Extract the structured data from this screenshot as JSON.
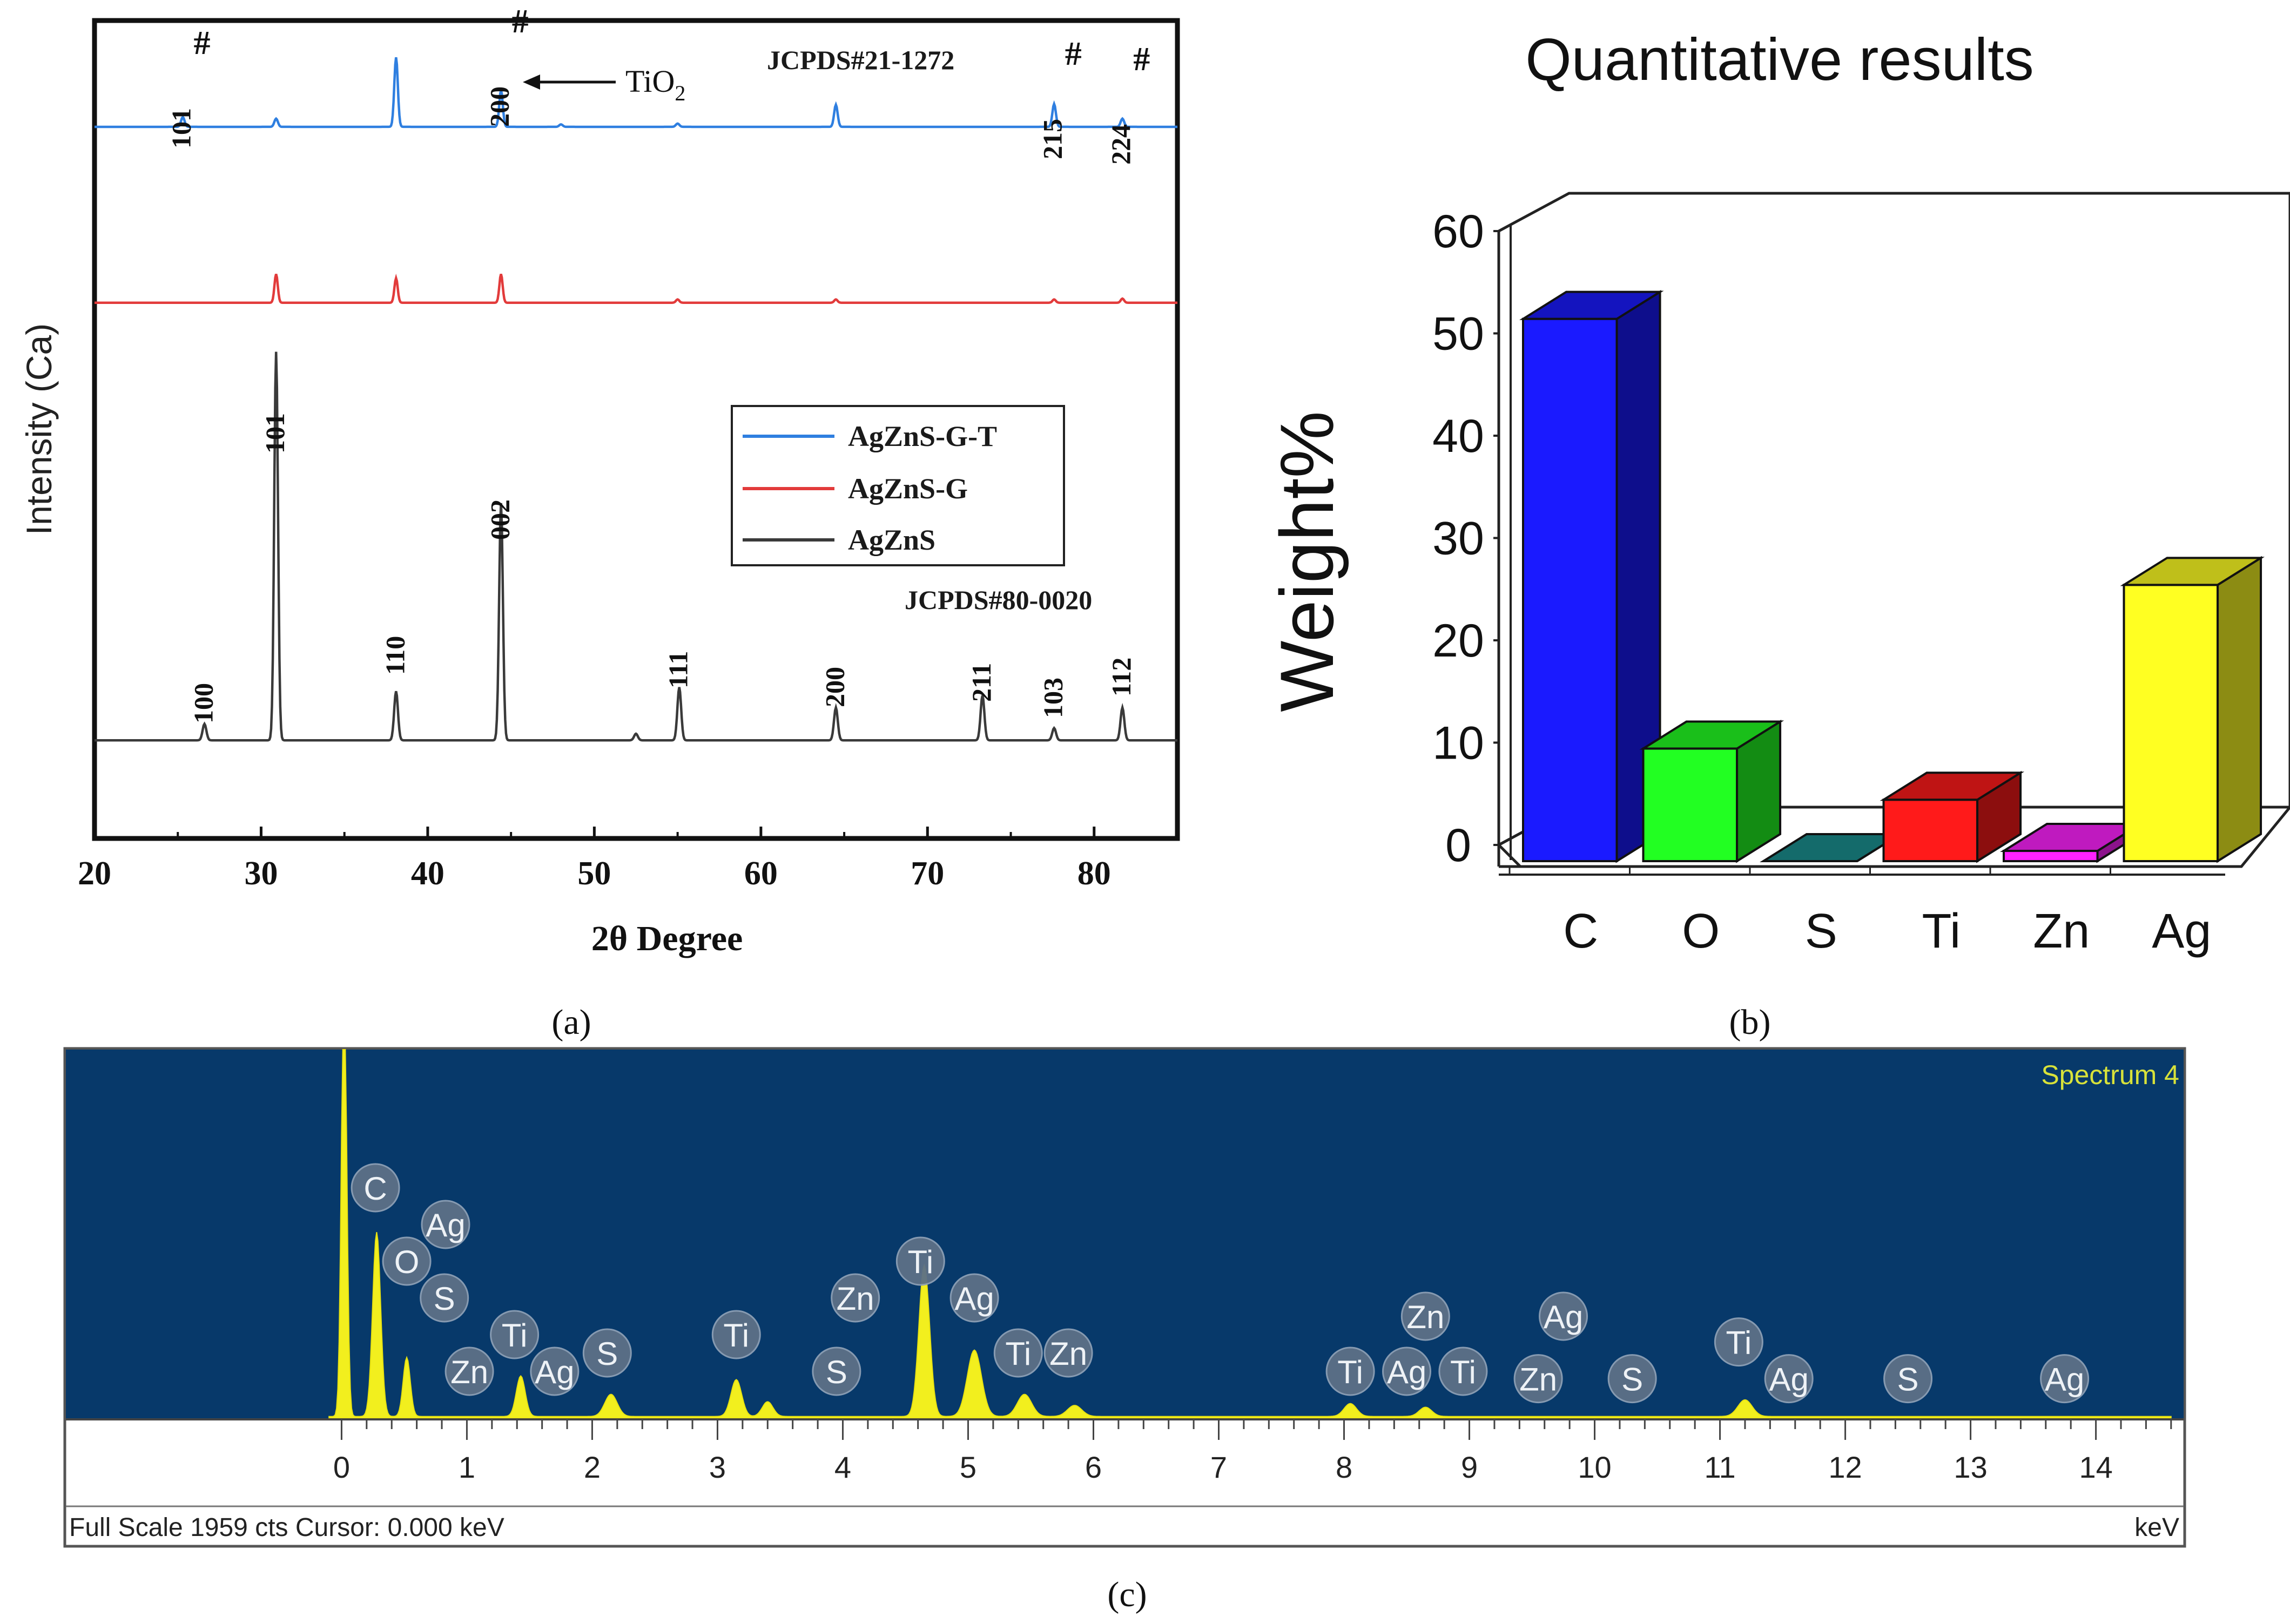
{
  "panel_labels": {
    "a": "(a)",
    "b": "(b)",
    "c": "(c)"
  },
  "colors": {
    "blue": "#2f7fe0",
    "red": "#e23b3b",
    "black": "#3a3a3a",
    "eds_bg": "#07396a",
    "eds_fill": "#f2ef1e",
    "eds_text": "#d8e23a",
    "bar_C": "#1a1aff",
    "bar_O": "#22ff22",
    "bar_S": "#1a8f8f",
    "bar_Ti": "#ff1a1a",
    "bar_Zn": "#ff22ff",
    "bar_Ag": "#ffff22"
  },
  "chart_data": [
    {
      "id": "a",
      "type": "line",
      "xlabel": "2θ Degree",
      "ylabel": "Intensity (Ca)",
      "xlim": [
        20,
        85
      ],
      "xticks": [
        20,
        30,
        40,
        50,
        60,
        70,
        80
      ],
      "ylim": [
        0,
        1
      ],
      "legend": [
        "AgZnS-G-T",
        "AgZnS-G",
        "AgZnS"
      ],
      "series": [
        {
          "name": "AgZnS-G-T",
          "color": "#2f7fe0",
          "baseline": 0.87,
          "width": 0.15,
          "peaks": [
            [
              25.3,
              0.012
            ],
            [
              30.9,
              0.01
            ],
            [
              38.1,
              0.085
            ],
            [
              44.4,
              0.045
            ],
            [
              48.0,
              0.003
            ],
            [
              55.0,
              0.004
            ],
            [
              64.5,
              0.027
            ],
            [
              77.6,
              0.028
            ],
            [
              81.7,
              0.01
            ]
          ]
        },
        {
          "name": "AgZnS-G",
          "color": "#e23b3b",
          "baseline": 0.655,
          "width": 0.14,
          "peaks": [
            [
              30.9,
              0.035
            ],
            [
              38.1,
              0.03
            ],
            [
              44.4,
              0.035
            ],
            [
              55.0,
              0.004
            ],
            [
              64.5,
              0.004
            ],
            [
              77.6,
              0.004
            ],
            [
              81.7,
              0.005
            ]
          ]
        },
        {
          "name": "AgZnS",
          "color": "#3a3a3a",
          "baseline": 0.12,
          "width": 0.16,
          "peaks": [
            [
              26.6,
              0.02
            ],
            [
              30.9,
              0.475
            ],
            [
              38.1,
              0.06
            ],
            [
              44.4,
              0.29
            ],
            [
              52.5,
              0.008
            ],
            [
              55.1,
              0.065
            ],
            [
              64.5,
              0.04
            ],
            [
              73.3,
              0.055
            ],
            [
              77.6,
              0.015
            ],
            [
              81.7,
              0.04
            ]
          ]
        }
      ],
      "annotations": {
        "tio2_peaks": [
          {
            "label": "101",
            "x": 25.3,
            "hash": "#"
          },
          {
            "label": "200",
            "x": 44.4,
            "hash": "#"
          },
          {
            "label": "215",
            "x": 77.6,
            "hash": "#"
          },
          {
            "label": "224",
            "x": 81.7,
            "hash": "#"
          }
        ],
        "tio2_label": "TiO",
        "tio2_sub": "2",
        "jcpds_top": "JCPDS#21-1272",
        "jcpds_bottom": "JCPDS#80-0020",
        "agzns_peaks": [
          {
            "label": "100",
            "x": 26.6
          },
          {
            "label": "101",
            "x": 30.9
          },
          {
            "label": "110",
            "x": 38.1
          },
          {
            "label": "002",
            "x": 44.4
          },
          {
            "label": "111",
            "x": 55.1
          },
          {
            "label": "200",
            "x": 64.5
          },
          {
            "label": "211",
            "x": 73.3
          },
          {
            "label": "103",
            "x": 77.6
          },
          {
            "label": "112",
            "x": 81.7
          }
        ]
      }
    },
    {
      "id": "b",
      "type": "bar",
      "title": "Quantitative results",
      "ylabel": "Weight%",
      "categories": [
        "C",
        "O",
        "S",
        "Ti",
        "Zn",
        "Ag"
      ],
      "values": [
        53,
        11,
        0,
        6,
        1,
        27
      ],
      "ylim": [
        0,
        60
      ],
      "yticks": [
        0,
        10,
        20,
        30,
        40,
        50,
        60
      ]
    },
    {
      "id": "c",
      "type": "area",
      "title": "Spectrum 4",
      "xlabel": "keV",
      "xlim": [
        -2.2,
        14.7
      ],
      "xticks": [
        0,
        1,
        2,
        3,
        4,
        5,
        6,
        7,
        8,
        9,
        10,
        11,
        12,
        13,
        14
      ],
      "footer": "Full Scale 1959 cts  Cursor: 0.000 keV",
      "peaks": [
        {
          "x": 0.02,
          "h": 1.2,
          "w": 0.03
        },
        {
          "x": 0.28,
          "h": 0.5,
          "w": 0.045
        },
        {
          "x": 0.52,
          "h": 0.16,
          "w": 0.04
        },
        {
          "x": 1.43,
          "h": 0.11,
          "w": 0.05
        },
        {
          "x": 2.15,
          "h": 0.06,
          "w": 0.07
        },
        {
          "x": 3.15,
          "h": 0.1,
          "w": 0.06
        },
        {
          "x": 3.4,
          "h": 0.04,
          "w": 0.06
        },
        {
          "x": 4.65,
          "h": 0.41,
          "w": 0.06
        },
        {
          "x": 5.05,
          "h": 0.18,
          "w": 0.08
        },
        {
          "x": 5.45,
          "h": 0.06,
          "w": 0.08
        },
        {
          "x": 5.85,
          "h": 0.03,
          "w": 0.08
        },
        {
          "x": 8.05,
          "h": 0.035,
          "w": 0.07
        },
        {
          "x": 8.65,
          "h": 0.025,
          "w": 0.07
        },
        {
          "x": 11.2,
          "h": 0.045,
          "w": 0.08
        }
      ],
      "labels": [
        {
          "el": "C",
          "x": 0.27,
          "lvl": 0
        },
        {
          "el": "Ag",
          "x": 0.83,
          "lvl": 1
        },
        {
          "el": "O",
          "x": 0.52,
          "lvl": 2
        },
        {
          "el": "S",
          "x": 0.82,
          "lvl": 3
        },
        {
          "el": "Zn",
          "x": 1.02,
          "lvl": 5
        },
        {
          "el": "Ti",
          "x": 1.38,
          "lvl": 4
        },
        {
          "el": "Ag",
          "x": 1.7,
          "lvl": 5
        },
        {
          "el": "S",
          "x": 2.12,
          "lvl": 4.5
        },
        {
          "el": "Ti",
          "x": 3.15,
          "lvl": 4
        },
        {
          "el": "S",
          "x": 3.95,
          "lvl": 5
        },
        {
          "el": "Zn",
          "x": 4.1,
          "lvl": 3
        },
        {
          "el": "Ti",
          "x": 4.62,
          "lvl": 2
        },
        {
          "el": "Ag",
          "x": 5.05,
          "lvl": 3
        },
        {
          "el": "Ti",
          "x": 5.4,
          "lvl": 4.5
        },
        {
          "el": "Zn",
          "x": 5.8,
          "lvl": 4.5
        },
        {
          "el": "Ti",
          "x": 8.05,
          "lvl": 5
        },
        {
          "el": "Ag",
          "x": 8.5,
          "lvl": 5
        },
        {
          "el": "Zn",
          "x": 8.65,
          "lvl": 3.5
        },
        {
          "el": "Ti",
          "x": 8.95,
          "lvl": 5
        },
        {
          "el": "Zn",
          "x": 9.55,
          "lvl": 5.2
        },
        {
          "el": "Ag",
          "x": 9.75,
          "lvl": 3.5
        },
        {
          "el": "S",
          "x": 10.3,
          "lvl": 5.2
        },
        {
          "el": "Ti",
          "x": 11.15,
          "lvl": 4.2
        },
        {
          "el": "Ag",
          "x": 11.55,
          "lvl": 5.2
        },
        {
          "el": "S",
          "x": 12.5,
          "lvl": 5.2
        },
        {
          "el": "Ag",
          "x": 13.75,
          "lvl": 5.2
        }
      ]
    }
  ]
}
